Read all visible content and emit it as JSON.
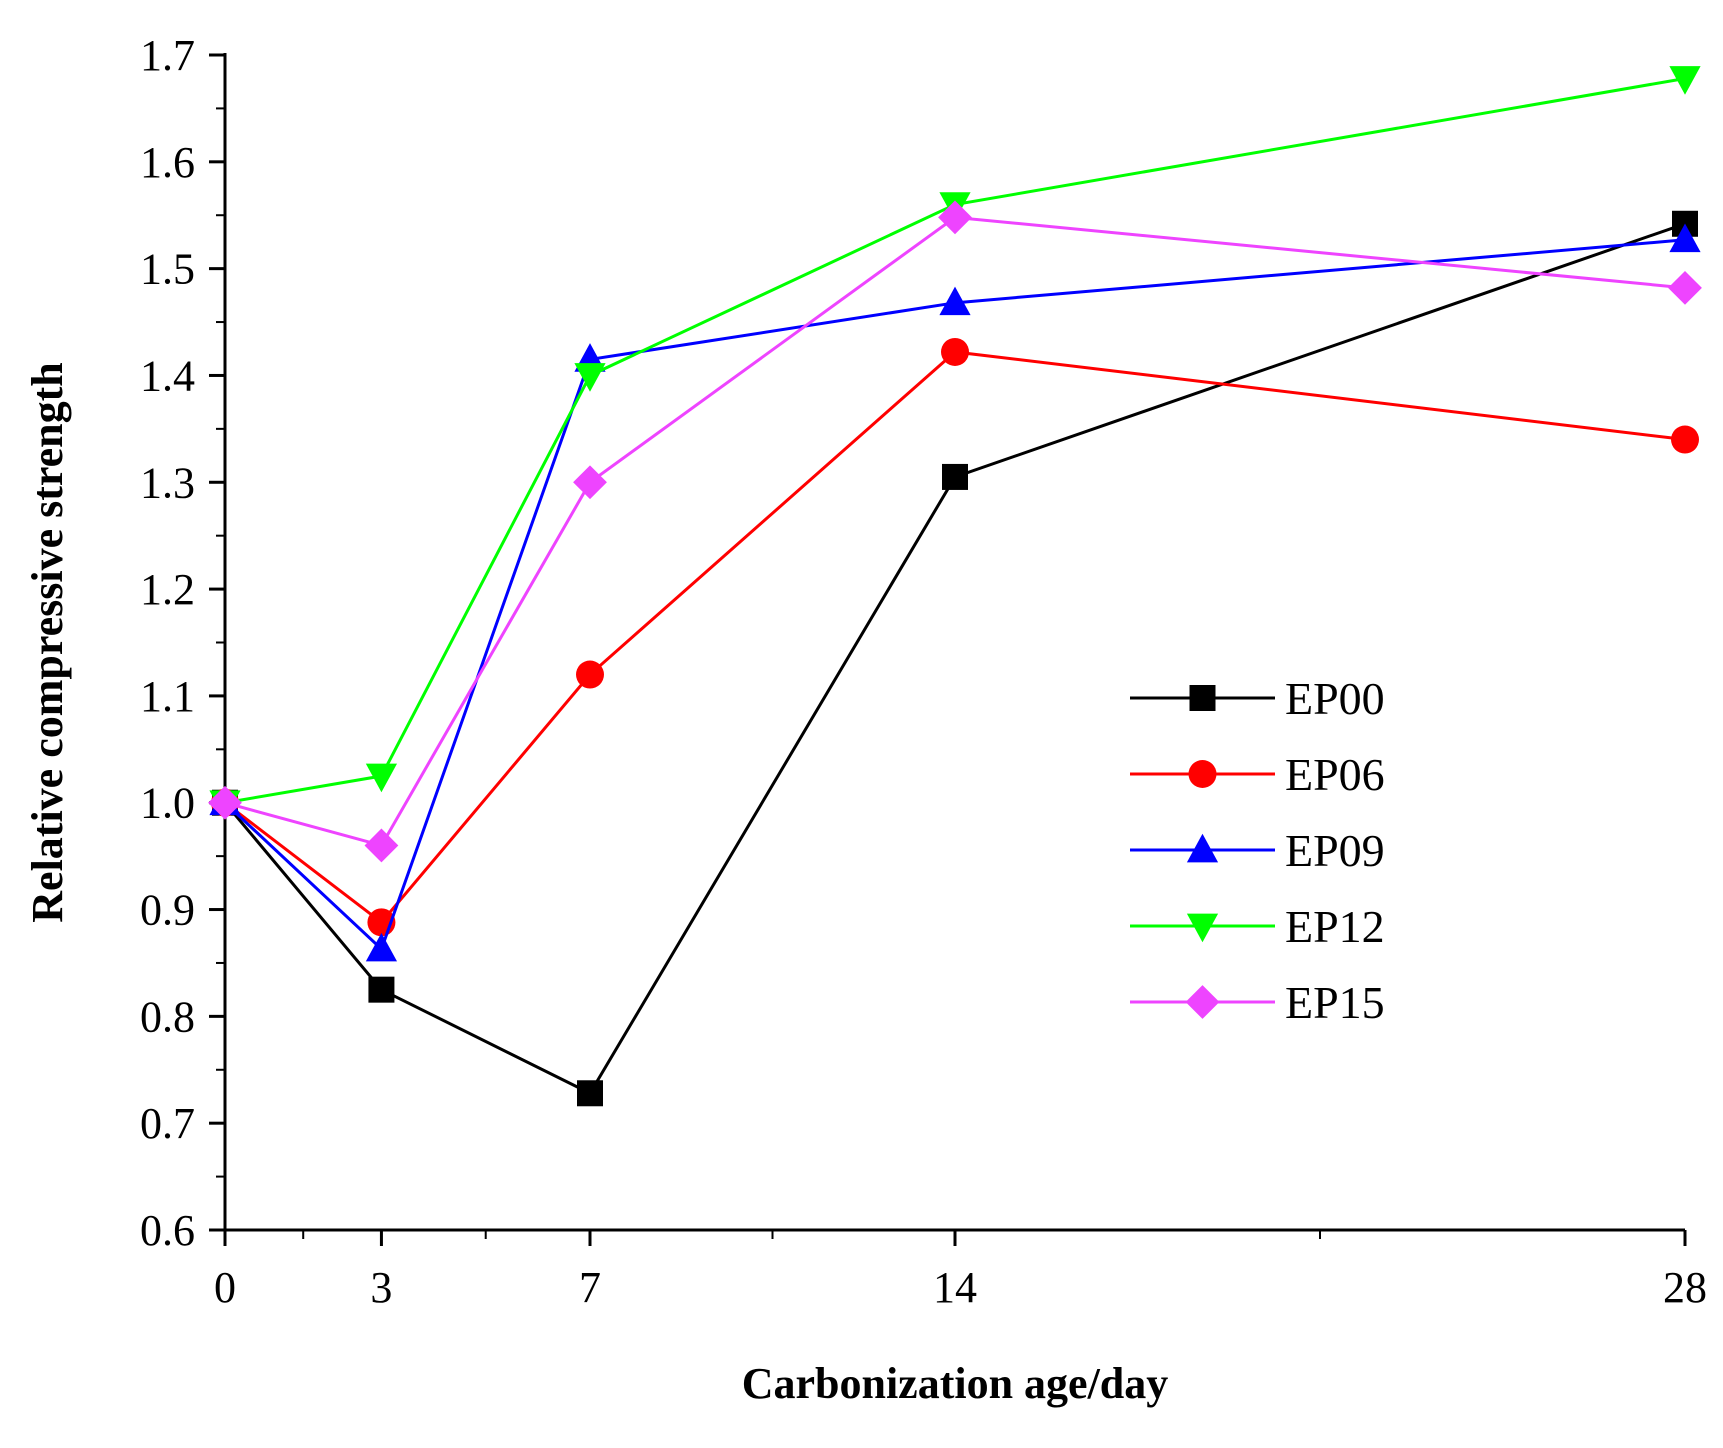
{
  "chart_data": {
    "type": "line",
    "xlabel": "Carbonization age/day",
    "ylabel": "Relative compressive strength",
    "x": [
      0,
      3,
      7,
      14,
      28
    ],
    "xlim": [
      0,
      28
    ],
    "ylim": [
      0.6,
      1.7
    ],
    "x_ticks": [
      0,
      3,
      7,
      14,
      28
    ],
    "x_tick_labels": [
      "0",
      "3",
      "7",
      "14",
      "28"
    ],
    "x_minor_ticks": [
      1.5,
      5,
      10.5,
      21
    ],
    "y_ticks": [
      0.6,
      0.7,
      0.8,
      0.9,
      1.0,
      1.1,
      1.2,
      1.3,
      1.4,
      1.5,
      1.6,
      1.7
    ],
    "y_tick_labels": [
      "0.6",
      "0.7",
      "0.8",
      "0.9",
      "1.0",
      "1.1",
      "1.2",
      "1.3",
      "1.4",
      "1.5",
      "1.6",
      "1.7"
    ],
    "legend_position": "center-right",
    "grid": false,
    "series": [
      {
        "name": "EP00",
        "color": "#000000",
        "marker": "square",
        "values": [
          1.0,
          0.825,
          0.728,
          1.305,
          1.542
        ]
      },
      {
        "name": "EP06",
        "color": "#ff0000",
        "marker": "circle",
        "values": [
          1.0,
          0.888,
          1.12,
          1.422,
          1.34
        ]
      },
      {
        "name": "EP09",
        "color": "#0000ff",
        "marker": "triangle-up",
        "values": [
          1.0,
          0.863,
          1.415,
          1.468,
          1.527
        ]
      },
      {
        "name": "EP12",
        "color": "#00ff00",
        "marker": "triangle-down",
        "values": [
          1.0,
          1.025,
          1.4,
          1.56,
          1.678
        ]
      },
      {
        "name": "EP15",
        "color": "#ee44ff",
        "marker": "diamond",
        "values": [
          1.0,
          0.96,
          1.3,
          1.548,
          1.482
        ]
      }
    ]
  }
}
